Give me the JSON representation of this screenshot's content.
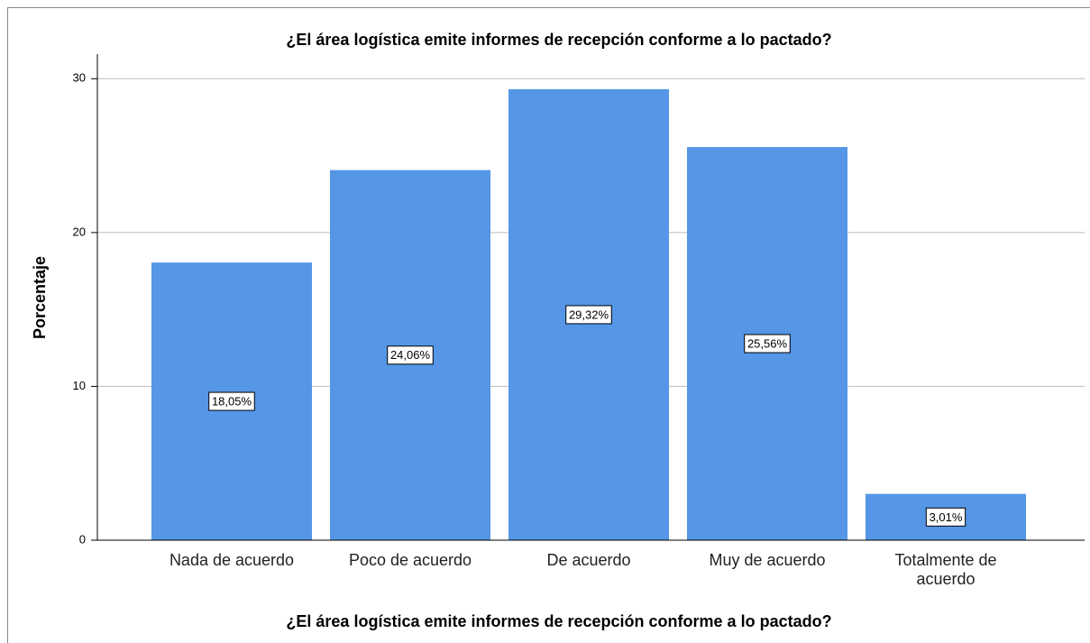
{
  "chart_data": {
    "type": "bar",
    "title": "¿El área logística emite informes de recepción conforme a lo pactado?",
    "x_label": "¿El área logística emite informes de recepción conforme a lo pactado?",
    "y_label": "Porcentaje",
    "categories": [
      "Nada de acuerdo",
      "Poco de acuerdo",
      "De acuerdo",
      "Muy de acuerdo",
      "Totalmente de acuerdo"
    ],
    "values": [
      18.05,
      24.06,
      29.32,
      25.56,
      3.01
    ],
    "value_labels": [
      "18,05%",
      "24,06%",
      "29,32%",
      "25,56%",
      "3,01%"
    ],
    "color": "#5596e6",
    "ylim": [
      0,
      31.6
    ],
    "yticks": [
      0,
      10,
      20,
      30
    ],
    "grid": true
  }
}
